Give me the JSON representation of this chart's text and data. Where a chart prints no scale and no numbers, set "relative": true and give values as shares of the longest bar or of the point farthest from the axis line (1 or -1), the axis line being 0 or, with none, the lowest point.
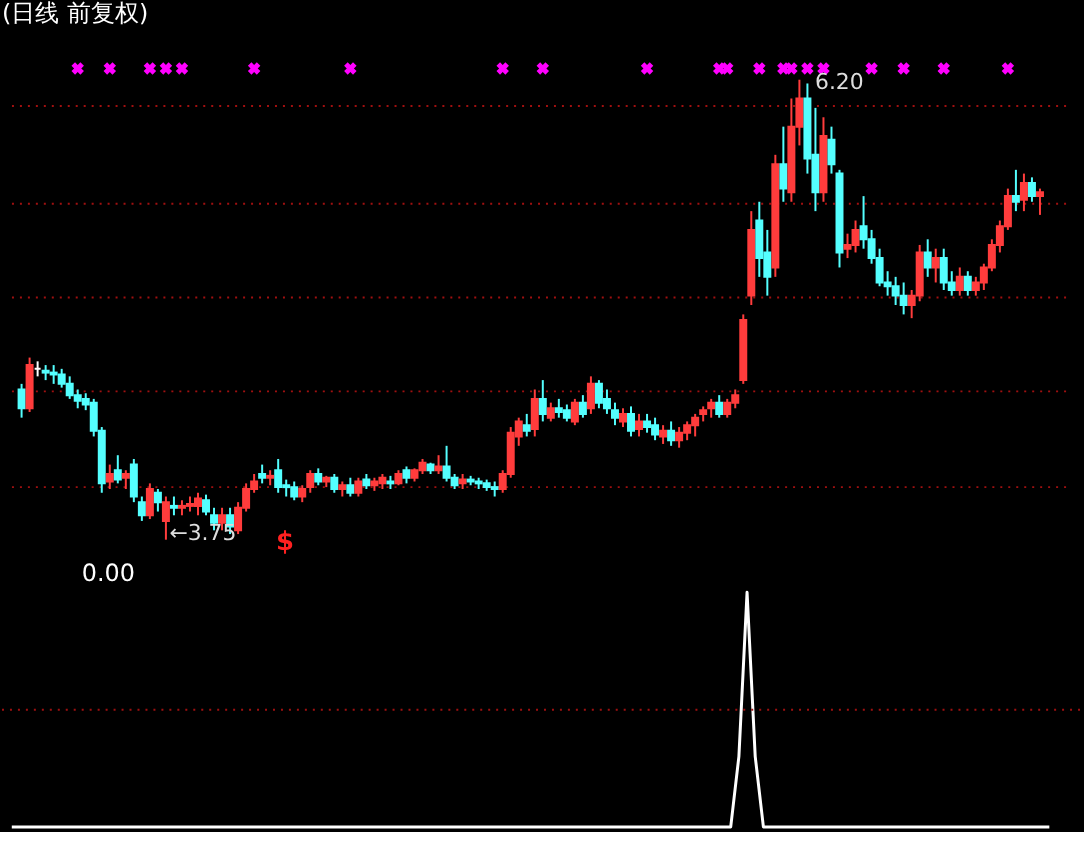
{
  "chart_data": [
    {
      "type": "candlestick",
      "title": "(日线 前复权)",
      "ref_lines": [
        {
          "axis": "y",
          "value": 6.06,
          "color": "#a01010",
          "line_style": "dotted"
        },
        {
          "axis": "y",
          "value": 5.54,
          "color": "#a01010",
          "line_style": "dotted"
        },
        {
          "axis": "y",
          "value": 5.04,
          "color": "#a01010",
          "line_style": "dotted"
        },
        {
          "axis": "y",
          "value": 4.54,
          "color": "#a01010",
          "line_style": "dotted"
        },
        {
          "axis": "y",
          "value": 4.03,
          "color": "#a01010",
          "line_style": "dotted"
        }
      ],
      "categories": [
        null,
        null,
        null,
        null,
        null,
        null,
        null,
        null,
        null,
        null,
        null,
        null,
        null,
        null,
        null,
        null,
        null,
        null,
        null,
        null,
        null,
        null,
        null,
        null,
        null,
        null,
        null,
        null,
        null,
        null,
        null,
        null,
        null,
        null,
        null,
        null,
        null,
        null,
        null,
        null,
        null,
        null,
        null,
        null,
        null,
        null,
        null,
        null,
        null,
        null,
        null,
        null,
        null,
        null,
        null,
        null,
        null,
        null,
        null,
        null,
        null,
        null,
        null,
        null,
        null,
        null,
        null,
        null,
        null,
        null,
        null,
        null,
        null,
        null,
        null,
        null,
        null,
        null,
        null,
        null,
        null,
        null,
        null,
        null,
        null,
        null,
        null,
        null,
        null,
        null,
        null,
        null,
        null,
        null,
        null,
        null,
        null,
        null,
        null,
        null,
        null,
        null,
        null,
        null,
        null,
        null,
        null,
        null,
        null,
        null,
        null,
        null,
        null,
        null,
        null,
        null,
        null,
        null,
        null,
        null,
        null,
        null,
        null,
        null,
        null,
        null,
        null,
        null
      ],
      "ohlc": [
        [
          4.55,
          4.58,
          4.4,
          4.45
        ],
        [
          4.45,
          4.72,
          4.43,
          4.68
        ],
        [
          4.66,
          4.7,
          4.62,
          4.66
        ],
        [
          4.65,
          4.68,
          4.6,
          4.64
        ],
        [
          4.64,
          4.68,
          4.58,
          4.63
        ],
        [
          4.63,
          4.66,
          4.56,
          4.58
        ],
        [
          4.58,
          4.62,
          4.5,
          4.52
        ],
        [
          4.52,
          4.55,
          4.45,
          4.49
        ],
        [
          4.5,
          4.53,
          4.44,
          4.47
        ],
        [
          4.48,
          4.5,
          4.3,
          4.33
        ],
        [
          4.33,
          4.35,
          4.0,
          4.05
        ],
        [
          4.06,
          4.15,
          4.02,
          4.1
        ],
        [
          4.12,
          4.2,
          4.05,
          4.07
        ],
        [
          4.08,
          4.12,
          4.02,
          4.1
        ],
        [
          4.15,
          4.18,
          3.95,
          3.98
        ],
        [
          3.95,
          3.98,
          3.85,
          3.88
        ],
        [
          3.88,
          4.05,
          3.86,
          4.02
        ],
        [
          4.0,
          4.02,
          3.9,
          3.95
        ],
        [
          3.85,
          3.98,
          3.75,
          3.95
        ],
        [
          3.93,
          3.98,
          3.88,
          3.92
        ],
        [
          3.92,
          3.96,
          3.88,
          3.93
        ],
        [
          3.93,
          3.98,
          3.9,
          3.94
        ],
        [
          3.93,
          4.0,
          3.88,
          3.97
        ],
        [
          3.96,
          3.99,
          3.88,
          3.9
        ],
        [
          3.88,
          3.92,
          3.8,
          3.84
        ],
        [
          3.84,
          3.92,
          3.8,
          3.88
        ],
        [
          3.88,
          3.92,
          3.78,
          3.82
        ],
        [
          3.8,
          3.95,
          3.78,
          3.92
        ],
        [
          3.92,
          4.05,
          3.9,
          4.02
        ],
        [
          4.02,
          4.1,
          4.0,
          4.06
        ],
        [
          4.1,
          4.15,
          4.05,
          4.08
        ],
        [
          4.08,
          4.12,
          4.04,
          4.09
        ],
        [
          4.12,
          4.18,
          4.0,
          4.03
        ],
        [
          4.04,
          4.07,
          3.98,
          4.03
        ],
        [
          4.03,
          4.06,
          3.96,
          3.98
        ],
        [
          3.98,
          4.04,
          3.95,
          4.02
        ],
        [
          4.03,
          4.12,
          4.0,
          4.1
        ],
        [
          4.1,
          4.13,
          4.04,
          4.06
        ],
        [
          4.06,
          4.09,
          4.03,
          4.08
        ],
        [
          4.08,
          4.1,
          4.0,
          4.02
        ],
        [
          4.02,
          4.06,
          3.98,
          4.04
        ],
        [
          4.04,
          4.08,
          3.98,
          4.0
        ],
        [
          4.0,
          4.08,
          3.98,
          4.06
        ],
        [
          4.07,
          4.1,
          4.02,
          4.04
        ],
        [
          4.04,
          4.08,
          4.01,
          4.06
        ],
        [
          4.05,
          4.1,
          4.02,
          4.08
        ],
        [
          4.06,
          4.09,
          4.02,
          4.05
        ],
        [
          4.05,
          4.12,
          4.04,
          4.1
        ],
        [
          4.12,
          4.14,
          4.05,
          4.08
        ],
        [
          4.08,
          4.13,
          4.06,
          4.12
        ],
        [
          4.12,
          4.18,
          4.1,
          4.16
        ],
        [
          4.15,
          4.16,
          4.1,
          4.12
        ],
        [
          4.12,
          4.2,
          4.1,
          4.14
        ],
        [
          4.14,
          4.25,
          4.06,
          4.08
        ],
        [
          4.08,
          4.1,
          4.02,
          4.04
        ],
        [
          4.05,
          4.1,
          4.02,
          4.07
        ],
        [
          4.07,
          4.09,
          4.04,
          4.06
        ],
        [
          4.06,
          4.08,
          4.02,
          4.05
        ],
        [
          4.05,
          4.07,
          4.01,
          4.03
        ],
        [
          4.03,
          4.06,
          3.98,
          4.02
        ],
        [
          4.02,
          4.12,
          4.0,
          4.1
        ],
        [
          4.1,
          4.35,
          4.08,
          4.32
        ],
        [
          4.3,
          4.4,
          4.25,
          4.38
        ],
        [
          4.36,
          4.42,
          4.3,
          4.33
        ],
        [
          4.34,
          4.55,
          4.3,
          4.5
        ],
        [
          4.5,
          4.6,
          4.38,
          4.42
        ],
        [
          4.4,
          4.48,
          4.38,
          4.45
        ],
        [
          4.45,
          4.5,
          4.4,
          4.43
        ],
        [
          4.44,
          4.47,
          4.38,
          4.4
        ],
        [
          4.38,
          4.5,
          4.36,
          4.48
        ],
        [
          4.48,
          4.52,
          4.4,
          4.42
        ],
        [
          4.45,
          4.62,
          4.42,
          4.58
        ],
        [
          4.58,
          4.6,
          4.45,
          4.48
        ],
        [
          4.5,
          4.55,
          4.42,
          4.45
        ],
        [
          4.44,
          4.48,
          4.36,
          4.4
        ],
        [
          4.38,
          4.45,
          4.35,
          4.42
        ],
        [
          4.42,
          4.46,
          4.3,
          4.33
        ],
        [
          4.34,
          4.42,
          4.3,
          4.38
        ],
        [
          4.38,
          4.42,
          4.32,
          4.35
        ],
        [
          4.36,
          4.4,
          4.28,
          4.31
        ],
        [
          4.3,
          4.36,
          4.26,
          4.33
        ],
        [
          4.33,
          4.38,
          4.25,
          4.28
        ],
        [
          4.28,
          4.35,
          4.24,
          4.32
        ],
        [
          4.32,
          4.38,
          4.28,
          4.36
        ],
        [
          4.36,
          4.42,
          4.3,
          4.4
        ],
        [
          4.42,
          4.46,
          4.38,
          4.44
        ],
        [
          4.45,
          4.5,
          4.4,
          4.48
        ],
        [
          4.48,
          4.52,
          4.4,
          4.42
        ],
        [
          4.42,
          4.5,
          4.4,
          4.48
        ],
        [
          4.48,
          4.55,
          4.45,
          4.52
        ],
        [
          4.6,
          4.95,
          4.58,
          4.92
        ],
        [
          5.05,
          5.5,
          5.0,
          5.4
        ],
        [
          5.45,
          5.55,
          5.15,
          5.25
        ],
        [
          5.28,
          5.4,
          5.05,
          5.15
        ],
        [
          5.2,
          5.8,
          5.15,
          5.75
        ],
        [
          5.75,
          5.95,
          5.55,
          5.62
        ],
        [
          5.6,
          6.1,
          5.55,
          5.95
        ],
        [
          5.95,
          6.2,
          5.85,
          6.1
        ],
        [
          6.1,
          6.18,
          5.7,
          5.78
        ],
        [
          5.8,
          6.05,
          5.5,
          5.6
        ],
        [
          5.6,
          6.0,
          5.55,
          5.9
        ],
        [
          5.88,
          5.95,
          5.7,
          5.75
        ],
        [
          5.7,
          5.72,
          5.2,
          5.28
        ],
        [
          5.3,
          5.38,
          5.25,
          5.32
        ],
        [
          5.32,
          5.45,
          5.28,
          5.4
        ],
        [
          5.42,
          5.58,
          5.3,
          5.35
        ],
        [
          5.35,
          5.4,
          5.22,
          5.25
        ],
        [
          5.25,
          5.3,
          5.1,
          5.12
        ],
        [
          5.12,
          5.18,
          5.05,
          5.1
        ],
        [
          5.1,
          5.15,
          5.0,
          5.05
        ],
        [
          5.05,
          5.12,
          4.95,
          5.0
        ],
        [
          5.0,
          5.08,
          4.93,
          5.05
        ],
        [
          5.05,
          5.32,
          5.02,
          5.28
        ],
        [
          5.28,
          5.35,
          5.15,
          5.2
        ],
        [
          5.2,
          5.3,
          5.12,
          5.25
        ],
        [
          5.25,
          5.3,
          5.08,
          5.12
        ],
        [
          5.12,
          5.18,
          5.05,
          5.08
        ],
        [
          5.08,
          5.2,
          5.05,
          5.15
        ],
        [
          5.15,
          5.18,
          5.05,
          5.08
        ],
        [
          5.08,
          5.15,
          5.05,
          5.12
        ],
        [
          5.12,
          5.22,
          5.08,
          5.2
        ],
        [
          5.2,
          5.35,
          5.18,
          5.32
        ],
        [
          5.32,
          5.45,
          5.28,
          5.42
        ],
        [
          5.42,
          5.62,
          5.4,
          5.58
        ],
        [
          5.58,
          5.72,
          5.5,
          5.55
        ],
        [
          5.56,
          5.7,
          5.5,
          5.65
        ],
        [
          5.65,
          5.68,
          5.55,
          5.58
        ],
        [
          5.58,
          5.62,
          5.48,
          5.6
        ]
      ],
      "series": [
        {
          "type": "scatter",
          "marker": "cross",
          "color": "#ff00ff",
          "values": [
            null,
            null,
            null,
            null,
            null,
            null,
            null,
            6.26,
            null,
            null,
            null,
            6.26,
            null,
            null,
            null,
            null,
            6.26,
            null,
            6.26,
            null,
            6.26,
            null,
            null,
            null,
            null,
            null,
            null,
            null,
            null,
            6.26,
            null,
            null,
            null,
            null,
            null,
            null,
            null,
            null,
            null,
            null,
            null,
            6.26,
            null,
            null,
            null,
            null,
            null,
            null,
            null,
            null,
            null,
            null,
            null,
            null,
            null,
            null,
            null,
            null,
            null,
            null,
            6.26,
            null,
            null,
            null,
            null,
            6.26,
            null,
            null,
            null,
            null,
            null,
            null,
            null,
            null,
            null,
            null,
            null,
            null,
            6.26,
            null,
            null,
            null,
            null,
            null,
            null,
            null,
            null,
            6.26,
            6.26,
            null,
            null,
            null,
            6.26,
            null,
            null,
            6.26,
            6.26,
            null,
            6.26,
            null,
            6.26,
            null,
            null,
            null,
            null,
            null,
            6.26,
            null,
            null,
            null,
            6.26,
            null,
            null,
            null,
            null,
            6.26,
            null,
            null,
            null,
            null,
            null,
            null,
            null,
            6.26,
            null,
            null,
            null,
            null
          ]
        }
      ],
      "annotations": [
        "6.20",
        "←3.75",
        "$"
      ]
    },
    {
      "type": "line",
      "relative": true,
      "ref_lines": [
        {
          "axis": "y",
          "value": 0.5,
          "color": "#a01010",
          "line_style": "dotted"
        }
      ],
      "categories": [
        null,
        null,
        null,
        null,
        null,
        null,
        null,
        null,
        null,
        null,
        null,
        null,
        null,
        null,
        null,
        null,
        null,
        null,
        null,
        null,
        null,
        null,
        null,
        null,
        null,
        null,
        null,
        null,
        null,
        null,
        null,
        null,
        null,
        null,
        null,
        null,
        null,
        null,
        null,
        null,
        null,
        null,
        null,
        null,
        null,
        null,
        null,
        null,
        null,
        null,
        null,
        null,
        null,
        null,
        null,
        null,
        null,
        null,
        null,
        null,
        null,
        null,
        null,
        null,
        null,
        null,
        null,
        null,
        null,
        null,
        null,
        null,
        null,
        null,
        null,
        null,
        null,
        null,
        null,
        null,
        null,
        null,
        null,
        null,
        null,
        null,
        null,
        null,
        null,
        null,
        null,
        null,
        null,
        null,
        null,
        null,
        null,
        null,
        null,
        null,
        null,
        null,
        null,
        null,
        null,
        null,
        null,
        null,
        null,
        null,
        null,
        null,
        null,
        null,
        null,
        null,
        null,
        null,
        null,
        null,
        null,
        null,
        null,
        null,
        null,
        null,
        null,
        null
      ],
      "series": [
        {
          "color": "#ffffff",
          "values": [
            0,
            0,
            0,
            0,
            0,
            0,
            0,
            0,
            0,
            0,
            0,
            0,
            0,
            0,
            0,
            0,
            0,
            0,
            0,
            0,
            0,
            0,
            0,
            0,
            0,
            0,
            0,
            0,
            0,
            0,
            0,
            0,
            0,
            0,
            0,
            0,
            0,
            0,
            0,
            0,
            0,
            0,
            0,
            0,
            0,
            0,
            0,
            0,
            0,
            0,
            0,
            0,
            0,
            0,
            0,
            0,
            0,
            0,
            0,
            0,
            0,
            0,
            0,
            0,
            0,
            0,
            0,
            0,
            0,
            0,
            0,
            0,
            0,
            0,
            0,
            0,
            0,
            0,
            0,
            0,
            0,
            0,
            0,
            0,
            0,
            0,
            0,
            0,
            0,
            0.3,
            1,
            0.3,
            0,
            0,
            0,
            0,
            0,
            0,
            0,
            0,
            0,
            0,
            0,
            0,
            0,
            0,
            0,
            0,
            0,
            0,
            0,
            0,
            0,
            0,
            0,
            0,
            0,
            0,
            0,
            0,
            0,
            0,
            0,
            0,
            0,
            0,
            0,
            0
          ]
        }
      ],
      "annotations": [
        "0.00"
      ]
    }
  ]
}
